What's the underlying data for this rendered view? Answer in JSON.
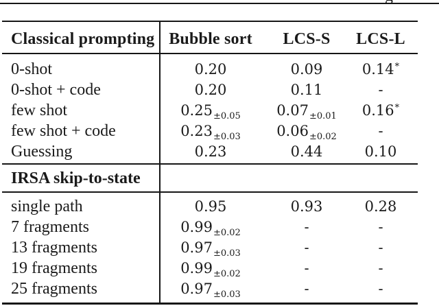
{
  "page": {
    "top_fragment": "g",
    "colors": {
      "background": "#ffffff",
      "text": "#1a1a1a",
      "rule": "#161616"
    },
    "table": {
      "header": {
        "col0": "Classical prompting",
        "col1": "Bubble sort",
        "col2": "LCS-S",
        "col3": "LCS-L"
      },
      "sections": [
        {
          "rows": [
            {
              "label": "0-shot",
              "values": [
                {
                  "v": "0.20"
                },
                {
                  "v": "0.09"
                },
                {
                  "v": "0.14",
                  "sup": "*"
                }
              ]
            },
            {
              "label": "0-shot + code",
              "values": [
                {
                  "v": "0.20"
                },
                {
                  "v": "0.11"
                },
                {
                  "v": "-"
                }
              ]
            },
            {
              "label": "few shot",
              "values": [
                {
                  "v": "0.25",
                  "sub": "±0.05"
                },
                {
                  "v": "0.07",
                  "sub": "±0.01"
                },
                {
                  "v": "0.16",
                  "sup": "*"
                }
              ]
            },
            {
              "label": "few shot + code",
              "values": [
                {
                  "v": "0.23",
                  "sub": "±0.03"
                },
                {
                  "v": "0.06",
                  "sub": "±0.02"
                },
                {
                  "v": "-"
                }
              ]
            },
            {
              "label": "Guessing",
              "values": [
                {
                  "v": "0.23"
                },
                {
                  "v": "0.44"
                },
                {
                  "v": "0.10"
                }
              ]
            }
          ]
        },
        {
          "subheader": "IRSA skip-to-state",
          "rows": [
            {
              "label": "single path",
              "values": [
                {
                  "v": "0.95"
                },
                {
                  "v": "0.93"
                },
                {
                  "v": "0.28"
                }
              ]
            },
            {
              "label": "7 fragments",
              "values": [
                {
                  "v": "0.99",
                  "sub": "±0.02"
                },
                {
                  "v": "-"
                },
                {
                  "v": "-"
                }
              ]
            },
            {
              "label": "13 fragments",
              "values": [
                {
                  "v": "0.97",
                  "sub": "±0.03"
                },
                {
                  "v": "-"
                },
                {
                  "v": "-"
                }
              ]
            },
            {
              "label": "19 fragments",
              "values": [
                {
                  "v": "0.99",
                  "sub": "±0.02"
                },
                {
                  "v": "-"
                },
                {
                  "v": "-"
                }
              ]
            },
            {
              "label": "25 fragments",
              "values": [
                {
                  "v": "0.97",
                  "sub": "±0.03"
                },
                {
                  "v": "-"
                },
                {
                  "v": "-"
                }
              ]
            }
          ]
        }
      ]
    }
  },
  "chart_data": {
    "type": "table",
    "title": "",
    "columns": [
      "",
      "Bubble sort",
      "LCS-S",
      "LCS-L"
    ],
    "rows": [
      [
        "0-shot",
        "0.20",
        "0.09",
        "0.14*"
      ],
      [
        "0-shot + code",
        "0.20",
        "0.11",
        "-"
      ],
      [
        "few shot",
        "0.25±0.05",
        "0.07±0.01",
        "0.16*"
      ],
      [
        "few shot + code",
        "0.23±0.03",
        "0.06±0.02",
        "-"
      ],
      [
        "Guessing",
        "0.23",
        "0.44",
        "0.10"
      ],
      [
        "IRSA skip-to-state",
        "",
        "",
        ""
      ],
      [
        "single path",
        "0.95",
        "0.93",
        "0.28"
      ],
      [
        "7 fragments",
        "0.99±0.02",
        "-",
        "-"
      ],
      [
        "13 fragments",
        "0.97±0.03",
        "-",
        "-"
      ],
      [
        "19 fragments",
        "0.99±0.02",
        "-",
        "-"
      ],
      [
        "25 fragments",
        "0.97±0.03",
        "-",
        "-"
      ]
    ]
  }
}
